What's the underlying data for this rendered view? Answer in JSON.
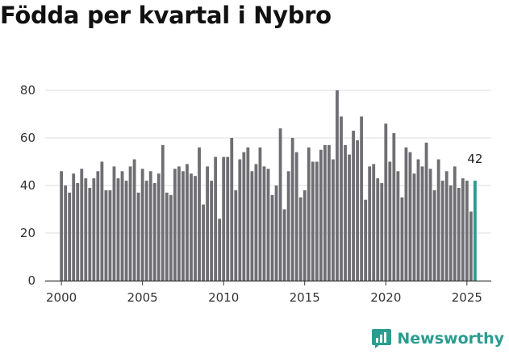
{
  "title": "Födda per kvartal i Nybro",
  "brand": {
    "name": "Newsworthy",
    "color": "#2a9d8f",
    "icon": "bar-chart-icon"
  },
  "chart_data": {
    "type": "bar",
    "title": "Födda per kvartal i Nybro",
    "xlabel": "",
    "ylabel": "",
    "ylim": [
      0,
      80
    ],
    "xlim": [
      1999.0,
      2026.5
    ],
    "yticks": [
      0,
      20,
      40,
      60,
      80
    ],
    "xticks": [
      "2000",
      "2005",
      "2010",
      "2015",
      "2020",
      "2025"
    ],
    "grid": true,
    "colors": {
      "bar": "#6f6e73",
      "highlight": "#2a9d8f"
    },
    "start_quarter": "2000 Q1",
    "values": [
      46,
      40,
      37,
      45,
      41,
      47,
      43,
      39,
      43,
      46,
      50,
      38,
      38,
      48,
      43,
      46,
      42,
      48,
      51,
      37,
      47,
      42,
      46,
      41,
      45,
      57,
      37,
      36,
      47,
      48,
      46,
      49,
      45,
      44,
      56,
      32,
      48,
      42,
      52,
      26,
      52,
      52,
      60,
      38,
      51,
      54,
      56,
      46,
      49,
      56,
      48,
      47,
      36,
      40,
      64,
      30,
      46,
      60,
      54,
      35,
      38,
      56,
      50,
      50,
      55,
      57,
      57,
      51,
      80,
      69,
      57,
      53,
      63,
      59,
      69,
      34,
      48,
      49,
      43,
      41,
      66,
      50,
      62,
      46,
      35,
      56,
      54,
      45,
      51,
      48,
      58,
      47,
      38,
      51,
      42,
      46,
      40,
      48,
      39,
      43,
      42,
      29,
      42
    ],
    "highlight": {
      "label": "42",
      "value": 42,
      "quarter": "2025 Q3"
    }
  }
}
